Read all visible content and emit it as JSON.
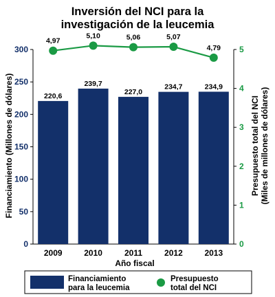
{
  "chart_data": {
    "type": "bar",
    "title_lines": [
      "Inversión del NCI para la",
      "investigación de la leucemia"
    ],
    "xlabel": "Año fiscal",
    "categories": [
      "2009",
      "2010",
      "2011",
      "2012",
      "2013"
    ],
    "left_axis": {
      "label_lines": [
        "Financiamiento (Millones de dólares)"
      ],
      "ylim": [
        0,
        300
      ],
      "ticks": [
        "0",
        "50",
        "100",
        "150",
        "200",
        "250",
        "300"
      ],
      "color": "#13306a"
    },
    "right_axis": {
      "label_lines": [
        "Presupuesto total del NCI",
        "(Miles de millones de dólares)"
      ],
      "ylim": [
        0,
        5
      ],
      "ticks": [
        "0",
        "1",
        "2",
        "3",
        "4",
        "5"
      ],
      "color": "#1a9a44"
    },
    "series": [
      {
        "name": "Financiamiento para la leucemia",
        "legend_lines": [
          "Financiamiento",
          "para la leucemia"
        ],
        "type": "bar",
        "axis": "left",
        "values": [
          220.6,
          239.7,
          227.0,
          234.7,
          234.9
        ],
        "labels": [
          "220,6",
          "239,7",
          "227,0",
          "234,7",
          "234,9"
        ],
        "color": "#13306a"
      },
      {
        "name": "Presupuesto total del NCI",
        "legend_lines": [
          "Presupuesto",
          "total del NCI"
        ],
        "type": "line",
        "axis": "right",
        "values": [
          4.97,
          5.1,
          5.06,
          5.07,
          4.79
        ],
        "labels": [
          "4,97",
          "5,10",
          "5,06",
          "5,07",
          "4,79"
        ],
        "color": "#1a9a44"
      }
    ],
    "grid": false,
    "legend_position": "bottom"
  }
}
